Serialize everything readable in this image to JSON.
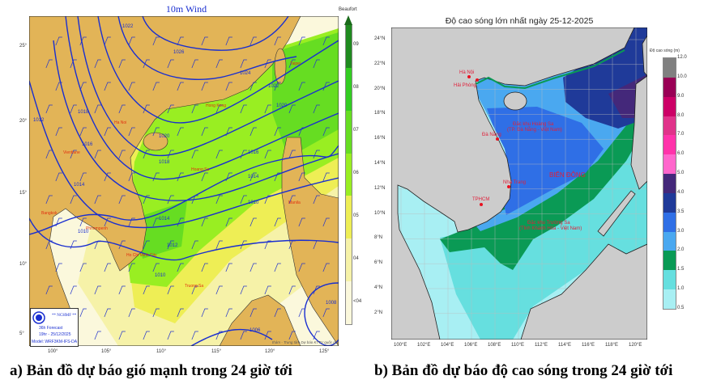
{
  "panel_a": {
    "title": "10m Wind",
    "colorbar": {
      "label": "Beaufort",
      "ticks": [
        "09",
        "08",
        "07",
        "06",
        "05",
        "04",
        "<04"
      ],
      "colors": [
        "#1f8a1f",
        "#33cc22",
        "#66dd22",
        "#99ee22",
        "#eeee55",
        "#f6f2a8",
        "#fbf8dc"
      ]
    },
    "lat_labels": [
      "25°",
      "20°",
      "15°",
      "10°",
      "5°"
    ],
    "lon_labels": [
      "100°",
      "105°",
      "110°",
      "115°",
      "120°",
      "125°"
    ],
    "isobar_labels": [
      "1026",
      "1024",
      "1022",
      "1022",
      "1020",
      "1020",
      "1018",
      "1018",
      "1016",
      "1016",
      "1014",
      "1014",
      "1014",
      "1012",
      "1012",
      "1010",
      "1010",
      "1010",
      "1008",
      "1006"
    ],
    "cities": [
      "Ha Noi",
      "Hong Kong",
      "Taipei",
      "Vientiane",
      "Hoang Sa",
      "Manila",
      "Bangkok",
      "Phnompenh",
      "Ho Chi Minh City",
      "Truong Sa"
    ],
    "legend": {
      "org": "** NCHMF **",
      "forecast": "36h Forecast",
      "time": "19hr - 25/12/2025",
      "model": "Model: WRF3KM-IFS-DA"
    },
    "credit": "thám - Trung tâm Dự báo KTTV quốc gia",
    "colors": {
      "land": "#e2b457",
      "isobar": "#1a2fd0",
      "city": "#e03010"
    },
    "caption": "a) Bản đồ dự báo gió mạnh trong 24 giờ tới"
  },
  "panel_b": {
    "title": "Độ cao sóng lớn nhất ngày 25-12-2025",
    "colorbar": {
      "label": "Độ cao sóng (m)",
      "ticks": [
        "12.0",
        "10.0",
        "9.0",
        "8.0",
        "7.0",
        "6.0",
        "5.0",
        "4.0",
        "3.5",
        "3.0",
        "2.0",
        "1.5",
        "1.0",
        "0.5"
      ],
      "colors": [
        "#808080",
        "#990055",
        "#cc0066",
        "#e0338a",
        "#ff33aa",
        "#ff66cc",
        "#44287a",
        "#1f3a99",
        "#2f6fe6",
        "#4aa8f0",
        "#0a9a55",
        "#66dfdf",
        "#a8eff3"
      ]
    },
    "lat_labels": [
      "24°N",
      "22°N",
      "20°N",
      "18°N",
      "16°N",
      "14°N",
      "12°N",
      "10°N",
      "8°N",
      "6°N",
      "4°N",
      "2°N"
    ],
    "lon_labels": [
      "100°E",
      "102°E",
      "104°E",
      "106°E",
      "108°E",
      "110°E",
      "112°E",
      "114°E",
      "116°E",
      "118°E",
      "120°E"
    ],
    "places": {
      "hanoi": "Hà Nội",
      "haiphong": "Hải Phòng",
      "danang": "Đà Nẵng",
      "hoangsa_1": "Đặc khu Hoàng Sa",
      "hoangsa_2": "(TP. Đà Nẵng - Việt Nam)",
      "biendong": "BIỂN ĐÔNG",
      "nhatrang": "Nha Trang",
      "tphcm": "TPHCM",
      "truongsa_1": "Đặc khu Trường Sa",
      "truongsa_2": "(Tỉnh Khánh Hòa - Việt Nam)"
    },
    "colors": {
      "land": "#cccccc",
      "label": "#e0203a"
    },
    "caption": "b) Bản đồ dự báo độ cao sóng trong 24 giờ tới"
  }
}
